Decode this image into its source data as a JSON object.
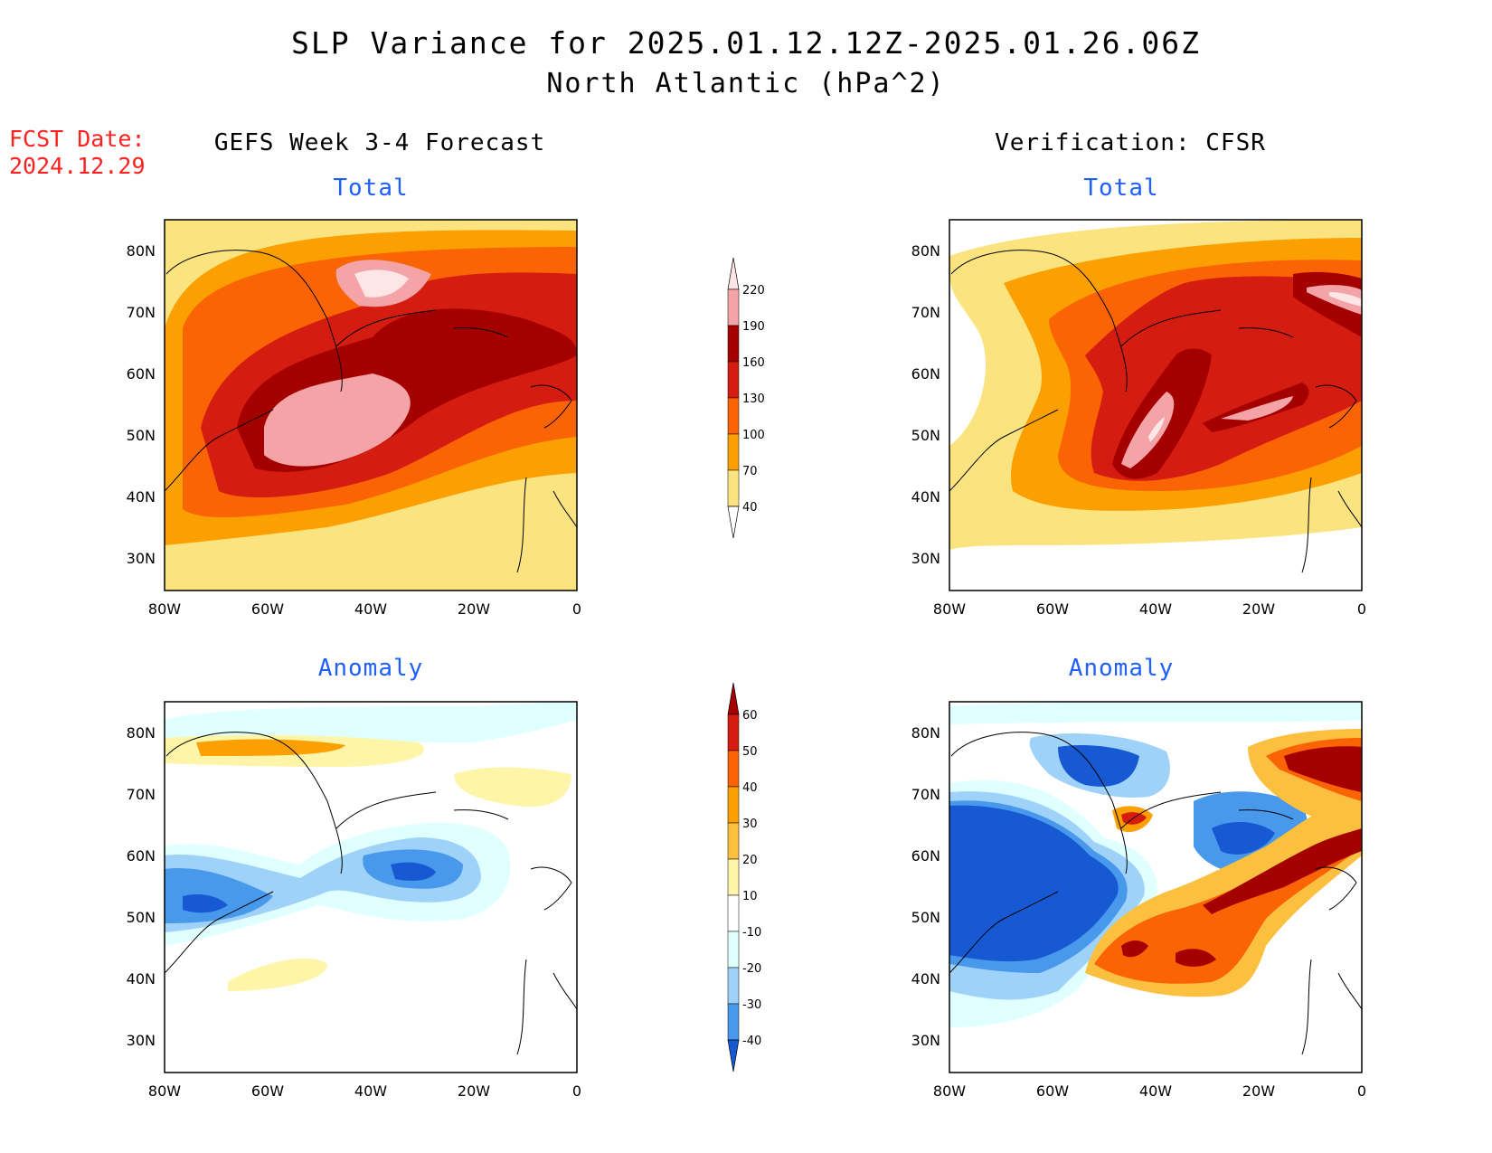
{
  "header": {
    "title": "SLP Variance for 2025.01.12.12Z-2025.01.26.06Z",
    "subtitle": "North Atlantic (hPa^2)",
    "fcst_label": "FCST Date:",
    "fcst_date": "2024.12.29"
  },
  "columns": {
    "left": "GEFS Week 3-4 Forecast",
    "right": "Verification: CFSR"
  },
  "panels": {
    "total_label": "Total",
    "anomaly_label": "Anomaly"
  },
  "axes": {
    "lat_ticks": [
      "80N",
      "70N",
      "60N",
      "50N",
      "40N",
      "30N"
    ],
    "lon_ticks": [
      "80W",
      "60W",
      "40W",
      "20W",
      "0"
    ]
  },
  "colorbars": {
    "total": {
      "levels": [
        "220",
        "190",
        "160",
        "130",
        "100",
        "70",
        "40"
      ],
      "colors": [
        "#ffe6e6",
        "#f4a3a6",
        "#a50000",
        "#d51c10",
        "#fb6405",
        "#fba000",
        "#fbe480"
      ]
    },
    "anomaly": {
      "levels": [
        "60",
        "50",
        "40",
        "30",
        "20",
        "10",
        "-10",
        "-20",
        "-30",
        "-40"
      ],
      "colors": [
        "#a50000",
        "#d51c10",
        "#fb6405",
        "#fba000",
        "#fbc040",
        "#fff5a8",
        "#ffffff",
        "#e0ffff",
        "#9fd2f8",
        "#4898ec",
        "#1659d2"
      ]
    }
  }
}
